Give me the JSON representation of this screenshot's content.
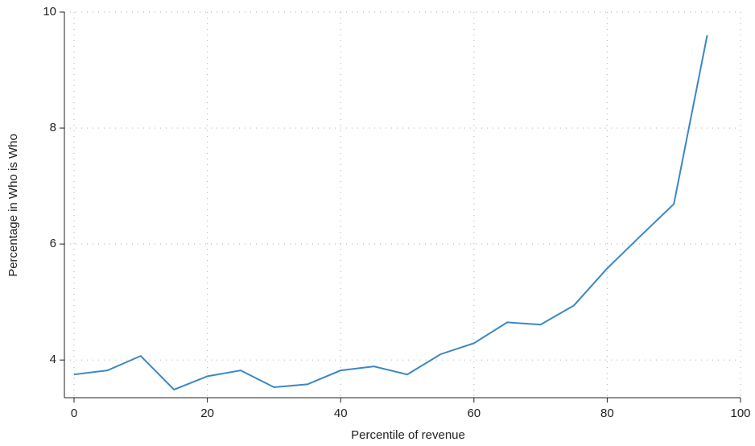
{
  "chart_data": {
    "type": "line",
    "x_label": "Percentile of revenue",
    "y_label": "Percentage in Who is Who",
    "x": [
      0,
      5,
      10,
      15,
      20,
      25,
      30,
      35,
      40,
      45,
      50,
      55,
      60,
      65,
      70,
      75,
      80,
      85,
      90,
      95
    ],
    "series": [
      {
        "color": "#3b87c2",
        "values": [
          3.75,
          3.82,
          4.07,
          3.49,
          3.72,
          3.82,
          3.53,
          3.58,
          3.82,
          3.89,
          3.75,
          4.1,
          4.29,
          4.65,
          4.61,
          4.94,
          5.58,
          6.14,
          6.69,
          9.6
        ]
      }
    ],
    "xlim": [
      -1.45,
      100
    ],
    "xticks": [
      0,
      20,
      40,
      60,
      80,
      100
    ],
    "ylim": [
      3.35,
      10
    ],
    "yticks": [
      4,
      6,
      8,
      10
    ],
    "grid": true
  }
}
